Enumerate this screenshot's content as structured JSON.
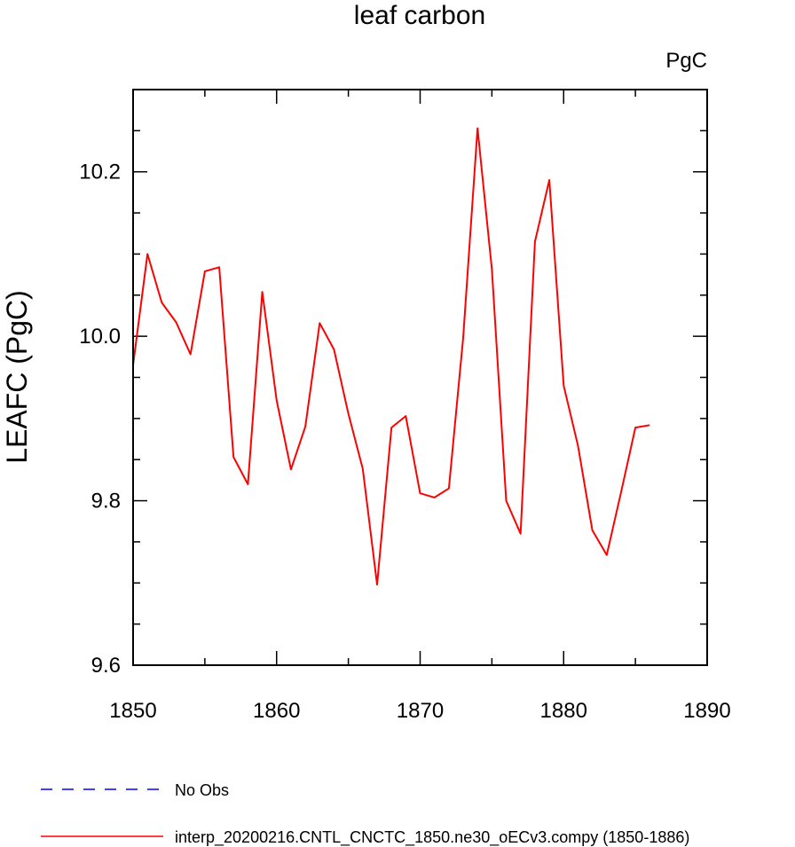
{
  "chart_data": {
    "type": "line",
    "title": "leaf carbon",
    "units": "PgC",
    "xlabel": "",
    "ylabel": "LEAFC  (PgC)",
    "xlim": [
      1850,
      1890
    ],
    "ylim": [
      9.6,
      10.3
    ],
    "x_ticks": [
      1850,
      1860,
      1870,
      1880,
      1890
    ],
    "x_tick_labels": [
      "1850",
      "1860",
      "1870",
      "1880",
      "1890"
    ],
    "y_ticks": [
      9.6,
      9.8,
      10.0,
      10.2
    ],
    "y_tick_labels": [
      "9.6",
      "9.8",
      "10.0",
      "10.2"
    ],
    "y_minor_step": 0.05,
    "x_minor_step": 5,
    "grid": false,
    "legend_position": "bottom",
    "series": [
      {
        "name": "interp_20200216.CNTL_CNCTC_1850.ne30_oECv3.compy (1850-1886)",
        "color": "#ff0000",
        "dash": "solid",
        "x": [
          1850,
          1851,
          1852,
          1853,
          1854,
          1855,
          1856,
          1857,
          1858,
          1859,
          1860,
          1861,
          1862,
          1863,
          1864,
          1865,
          1866,
          1867,
          1868,
          1869,
          1870,
          1871,
          1872,
          1873,
          1874,
          1875,
          1876,
          1877,
          1878,
          1879,
          1880,
          1881,
          1882,
          1883,
          1884,
          1885,
          1886
        ],
        "y": [
          9.965,
          10.1,
          10.041,
          10.017,
          9.978,
          10.079,
          10.084,
          9.853,
          9.82,
          10.054,
          9.922,
          9.838,
          9.89,
          10.016,
          9.984,
          9.906,
          9.839,
          9.698,
          9.889,
          9.903,
          9.809,
          9.804,
          9.815,
          9.998,
          10.253,
          10.081,
          9.8,
          9.76,
          10.115,
          10.19,
          9.94,
          9.867,
          9.764,
          9.734,
          9.81,
          9.889,
          9.892
        ]
      }
    ],
    "legend": [
      {
        "label": "No Obs",
        "color": "#0000ff",
        "dash": "dashed"
      },
      {
        "label": "interp_20200216.CNTL_CNCTC_1850.ne30_oECv3.compy (1850-1886)",
        "color": "#ff0000",
        "dash": "solid"
      }
    ]
  }
}
